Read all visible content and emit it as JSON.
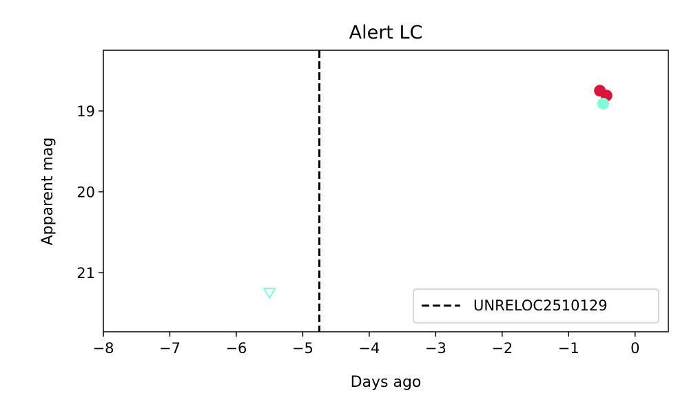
{
  "chart_data": {
    "type": "scatter",
    "title": "Alert LC",
    "xlabel": "Days ago",
    "ylabel": "Apparent mag",
    "xlim": [
      -8,
      0.5
    ],
    "ylim": [
      21.73,
      18.25
    ],
    "y_inverted": true,
    "xticks": [
      -8,
      -7,
      -6,
      -5,
      -4,
      -3,
      -2,
      -1,
      0
    ],
    "xtick_labels": [
      "−8",
      "−7",
      "−6",
      "−5",
      "−4",
      "−3",
      "−2",
      "−1",
      "0"
    ],
    "yticks": [
      19,
      20,
      21
    ],
    "ytick_labels": [
      "19",
      "20",
      "21"
    ],
    "grid": false,
    "legend_placement": "lower-right",
    "series": [
      {
        "marker": "circle",
        "color": "#dc143c",
        "points": [
          {
            "x": -0.53,
            "y": 18.75
          },
          {
            "x": -0.43,
            "y": 18.81
          }
        ]
      },
      {
        "marker": "circle",
        "color": "#7fffd4",
        "points": [
          {
            "x": -0.48,
            "y": 18.91
          }
        ]
      },
      {
        "marker": "triangle-down-open",
        "color": "#7fffd4",
        "points": [
          {
            "x": -5.5,
            "y": 21.25
          }
        ]
      }
    ],
    "vlines": [
      {
        "x": -4.75,
        "style": "dashed",
        "color": "#000000",
        "label": "UNRELOC2510129"
      }
    ]
  }
}
